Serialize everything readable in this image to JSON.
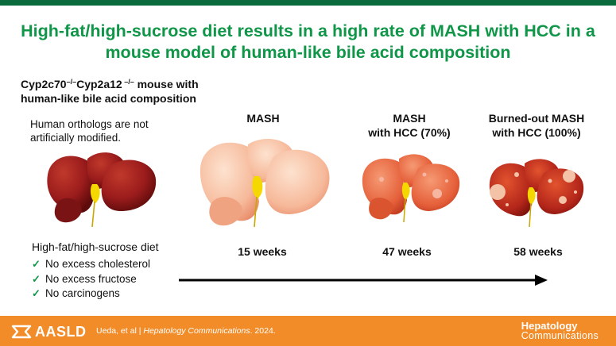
{
  "colors": {
    "title_green": "#109648",
    "top_bar": "#0b6b3c",
    "footer_orange": "#f28c28"
  },
  "title": {
    "line1": "High-fat/high-sucrose diet results in a high rate of MASH with HCC in a",
    "line2": "mouse model of human-like bile acid composition"
  },
  "model": {
    "name_line1_a": "Cyp2c70",
    "name_line1_sup1": "–/–",
    "name_line1_b": "Cyp2a12",
    "name_line1_sup2": " –/–",
    "name_line1_c": " mouse with",
    "name_line2": "human-like bile acid composition",
    "note": "Human orthologs are not artificially modified."
  },
  "stages": [
    {
      "label_line1": "MASH",
      "label_line2": "",
      "weeks": "15 weeks"
    },
    {
      "label_line1": "MASH",
      "label_line2": "with HCC (70%)",
      "weeks": "47 weeks"
    },
    {
      "label_line1": "Burned-out MASH",
      "label_line2": "with HCC (100%)",
      "weeks": "58 weeks"
    }
  ],
  "diet": {
    "title": "High-fat/high-sucrose diet",
    "items": [
      "No excess cholesterol",
      "No excess fructose",
      "No carcinogens"
    ]
  },
  "footer": {
    "org": "AASLD",
    "authors": "Ueda, et al  |  ",
    "journal_italic": "Hepatology Communications",
    "year": ". 2024.",
    "brand_line1": "Hepatology",
    "brand_line2": "Communications"
  }
}
